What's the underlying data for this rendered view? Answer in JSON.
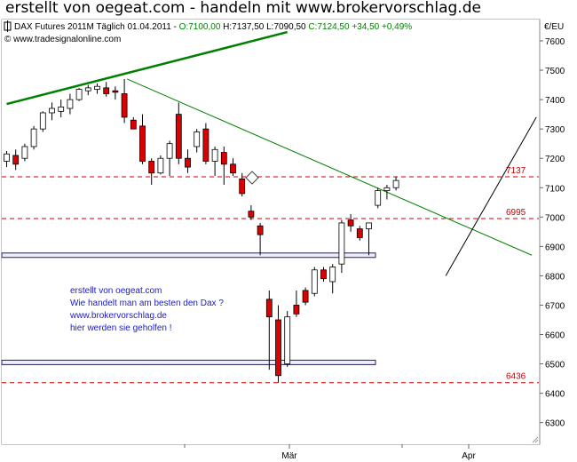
{
  "header": {
    "title": "erstellt von oegeat.com - handeln mit www.brokervorschlag.de"
  },
  "chart_info": {
    "instrument": "DAX Futures 2011M Täglich",
    "date": "01.04.2011",
    "open": "O:7100,00",
    "high": "H:7137,50",
    "low": "L:7090,50",
    "close": "C:7124,50",
    "change": "+34,50",
    "change_pct": "+0,49%",
    "watermark": "© www.tradesignalonline.com",
    "currency_label": "€/EU"
  },
  "annotation": {
    "lines": [
      "erstellt von oegeat.com",
      "Wie handelt man am besten den Dax ?",
      "www.brokervorschlag.de",
      "hier werden sie geholfen !"
    ]
  },
  "colors": {
    "up_candle": "#ffffff",
    "down_candle": "#dd0000",
    "trendline": "#008000",
    "support": "#cc0000",
    "annotation_text": "#1a1acc",
    "title_secondary": "#008000"
  },
  "chart_data": {
    "type": "candlestick",
    "ylim": [
      6250,
      7700
    ],
    "y_ticks": [
      6300,
      6400,
      6500,
      6600,
      6700,
      6800,
      6900,
      7000,
      7100,
      7200,
      7300,
      7400,
      7500,
      7600
    ],
    "x_ticks": [
      "Mär",
      "Apr"
    ],
    "grid": false,
    "candles": [
      {
        "o": 7190,
        "h": 7225,
        "l": 7170,
        "c": 7215
      },
      {
        "o": 7210,
        "h": 7230,
        "l": 7160,
        "c": 7180
      },
      {
        "o": 7200,
        "h": 7250,
        "l": 7190,
        "c": 7240
      },
      {
        "o": 7240,
        "h": 7310,
        "l": 7230,
        "c": 7300
      },
      {
        "o": 7300,
        "h": 7360,
        "l": 7290,
        "c": 7355
      },
      {
        "o": 7355,
        "h": 7390,
        "l": 7330,
        "c": 7370
      },
      {
        "o": 7360,
        "h": 7400,
        "l": 7340,
        "c": 7375
      },
      {
        "o": 7370,
        "h": 7420,
        "l": 7350,
        "c": 7400
      },
      {
        "o": 7400,
        "h": 7440,
        "l": 7395,
        "c": 7435
      },
      {
        "o": 7430,
        "h": 7450,
        "l": 7415,
        "c": 7440
      },
      {
        "o": 7435,
        "h": 7455,
        "l": 7420,
        "c": 7445
      },
      {
        "o": 7440,
        "h": 7460,
        "l": 7410,
        "c": 7420
      },
      {
        "o": 7430,
        "h": 7445,
        "l": 7400,
        "c": 7425
      },
      {
        "o": 7420,
        "h": 7470,
        "l": 7320,
        "c": 7340
      },
      {
        "o": 7330,
        "h": 7340,
        "l": 7300,
        "c": 7300
      },
      {
        "o": 7310,
        "h": 7350,
        "l": 7180,
        "c": 7190
      },
      {
        "o": 7190,
        "h": 7200,
        "l": 7110,
        "c": 7150
      },
      {
        "o": 7150,
        "h": 7210,
        "l": 7145,
        "c": 7200
      },
      {
        "o": 7200,
        "h": 7260,
        "l": 7140,
        "c": 7250
      },
      {
        "o": 7350,
        "h": 7390,
        "l": 7180,
        "c": 7200
      },
      {
        "o": 7200,
        "h": 7230,
        "l": 7150,
        "c": 7170
      },
      {
        "o": 7240,
        "h": 7300,
        "l": 7220,
        "c": 7290
      },
      {
        "o": 7300,
        "h": 7320,
        "l": 7180,
        "c": 7190
      },
      {
        "o": 7190,
        "h": 7240,
        "l": 7140,
        "c": 7230
      },
      {
        "o": 7220,
        "h": 7240,
        "l": 7110,
        "c": 7180
      },
      {
        "o": 7180,
        "h": 7200,
        "l": 7140,
        "c": 7150
      },
      {
        "o": 7130,
        "h": 7150,
        "l": 7070,
        "c": 7080
      },
      {
        "o": 7020,
        "h": 7040,
        "l": 6990,
        "c": 7000
      },
      {
        "o": 6970,
        "h": 6980,
        "l": 6870,
        "c": 6940
      },
      {
        "o": 6720,
        "h": 6750,
        "l": 6480,
        "c": 6660
      },
      {
        "o": 6650,
        "h": 6700,
        "l": 6436,
        "c": 6460
      },
      {
        "o": 6500,
        "h": 6680,
        "l": 6490,
        "c": 6660
      },
      {
        "o": 6700,
        "h": 6750,
        "l": 6660,
        "c": 6670
      },
      {
        "o": 6750,
        "h": 6760,
        "l": 6700,
        "c": 6710
      },
      {
        "o": 6740,
        "h": 6830,
        "l": 6730,
        "c": 6820
      },
      {
        "o": 6820,
        "h": 6830,
        "l": 6780,
        "c": 6790
      },
      {
        "o": 6780,
        "h": 6840,
        "l": 6740,
        "c": 6830
      },
      {
        "o": 6840,
        "h": 6990,
        "l": 6810,
        "c": 6980
      },
      {
        "o": 6990,
        "h": 7010,
        "l": 6950,
        "c": 6970
      },
      {
        "o": 6960,
        "h": 6970,
        "l": 6920,
        "c": 6930
      },
      {
        "o": 6960,
        "h": 6980,
        "l": 6870,
        "c": 6980
      },
      {
        "o": 7040,
        "h": 7100,
        "l": 7030,
        "c": 7090
      },
      {
        "o": 7090,
        "h": 7110,
        "l": 7060,
        "c": 7100
      },
      {
        "o": 7100,
        "h": 7137.5,
        "l": 7090.5,
        "c": 7124.5
      }
    ],
    "horizontal_levels": [
      {
        "value": 7137,
        "label": "7137"
      },
      {
        "value": 6995,
        "label": "6995"
      },
      {
        "value": 6436,
        "label": "6436"
      }
    ],
    "support_bands": [
      6870,
      6505
    ],
    "trendlines": [
      {
        "from": {
          "i": 0,
          "v": 7385
        },
        "to": {
          "i": 31,
          "v": 7630
        },
        "thick": true
      },
      {
        "from": {
          "i": 13.3,
          "v": 7470
        },
        "to": {
          "i": 58,
          "v": 6870
        },
        "thick": false
      },
      {
        "from": {
          "i": 48.5,
          "v": 6800
        },
        "to": {
          "i": 58.5,
          "v": 7340
        },
        "thick": false,
        "color": "#000000"
      }
    ]
  }
}
